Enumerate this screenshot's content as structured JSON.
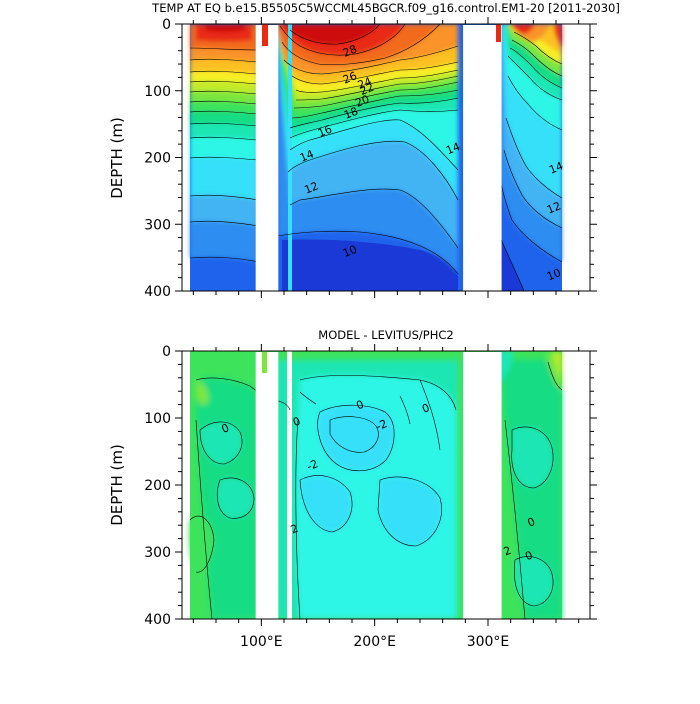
{
  "chart_data": [
    {
      "type": "heatmap",
      "title": "TEMP AT EQ b.e15.B5505C5WCCML45BGCR.f09_g16.control.EM1-20 [2011-2030]",
      "ylabel": "DEPTH (m)",
      "xlabel": "",
      "xlim": [
        30,
        390
      ],
      "ylim": [
        400,
        0
      ],
      "y_ticks": [
        "0",
        "100",
        "200",
        "300",
        "400"
      ],
      "x_ticks": [],
      "contour_levels": [
        10,
        12,
        14,
        16,
        18,
        20,
        22,
        24,
        26,
        28
      ],
      "contour_labels": [
        {
          "text": "28",
          "lon": 178,
          "depth": 40
        },
        {
          "text": "26",
          "lon": 178,
          "depth": 80
        },
        {
          "text": "24",
          "lon": 191,
          "depth": 88
        },
        {
          "text": "22",
          "lon": 193,
          "depth": 97
        },
        {
          "text": "20",
          "lon": 189,
          "depth": 115
        },
        {
          "text": "18",
          "lon": 179,
          "depth": 133
        },
        {
          "text": "16",
          "lon": 156,
          "depth": 160
        },
        {
          "text": "14",
          "lon": 140,
          "depth": 197
        },
        {
          "text": "14",
          "lon": 269,
          "depth": 186
        },
        {
          "text": "14",
          "lon": 360,
          "depth": 215
        },
        {
          "text": "12",
          "lon": 144,
          "depth": 245
        },
        {
          "text": "12",
          "lon": 358,
          "depth": 275
        },
        {
          "text": "10",
          "lon": 178,
          "depth": 340
        },
        {
          "text": "10",
          "lon": 358,
          "depth": 375
        }
      ],
      "land_gaps_lon": [
        [
          95,
          115
        ],
        [
          278,
          312
        ]
      ],
      "colors": [
        "#1a39d6",
        "#1f63ec",
        "#2e8df0",
        "#43b4f4",
        "#35e0f8",
        "#2ef6e6",
        "#1fe6b4",
        "#19dc83",
        "#3ee35c",
        "#7be63e",
        "#c2ea2b",
        "#f7ee26",
        "#fbc020",
        "#f9932a",
        "#f26a1e",
        "#e82a12",
        "#cd0e0e"
      ]
    },
    {
      "type": "heatmap",
      "title": "MODEL - LEVITUS/PHC2",
      "ylabel": "DEPTH (m)",
      "xlabel": "",
      "xlim": [
        30,
        390
      ],
      "ylim": [
        400,
        0
      ],
      "y_ticks": [
        "0",
        "100",
        "200",
        "300",
        "400"
      ],
      "x_ticks": [
        "100°E",
        "200°E",
        "300°E"
      ],
      "x_tick_values": [
        100,
        200,
        300
      ],
      "contour_levels": [
        -2,
        0,
        2
      ],
      "contour_labels": [
        {
          "text": "-2",
          "lon": 206,
          "depth": 110
        },
        {
          "text": "0",
          "lon": 187,
          "depth": 80
        },
        {
          "text": "0",
          "lon": 131,
          "depth": 105
        },
        {
          "text": "0",
          "lon": 68,
          "depth": 115
        },
        {
          "text": "0",
          "lon": 245,
          "depth": 85
        },
        {
          "text": "-2",
          "lon": 145,
          "depth": 170
        },
        {
          "text": "2",
          "lon": 129,
          "depth": 265
        },
        {
          "text": "0",
          "lon": 338,
          "depth": 255
        },
        {
          "text": "0",
          "lon": 336,
          "depth": 305
        },
        {
          "text": "2",
          "lon": 317,
          "depth": 298
        }
      ],
      "land_gaps_lon": [
        [
          95,
          115
        ],
        [
          278,
          312
        ]
      ],
      "colors": [
        "#2ef6e6",
        "#1fe6b4",
        "#19dc83",
        "#3ee35c",
        "#7be63e",
        "#c2ea2b"
      ]
    }
  ]
}
